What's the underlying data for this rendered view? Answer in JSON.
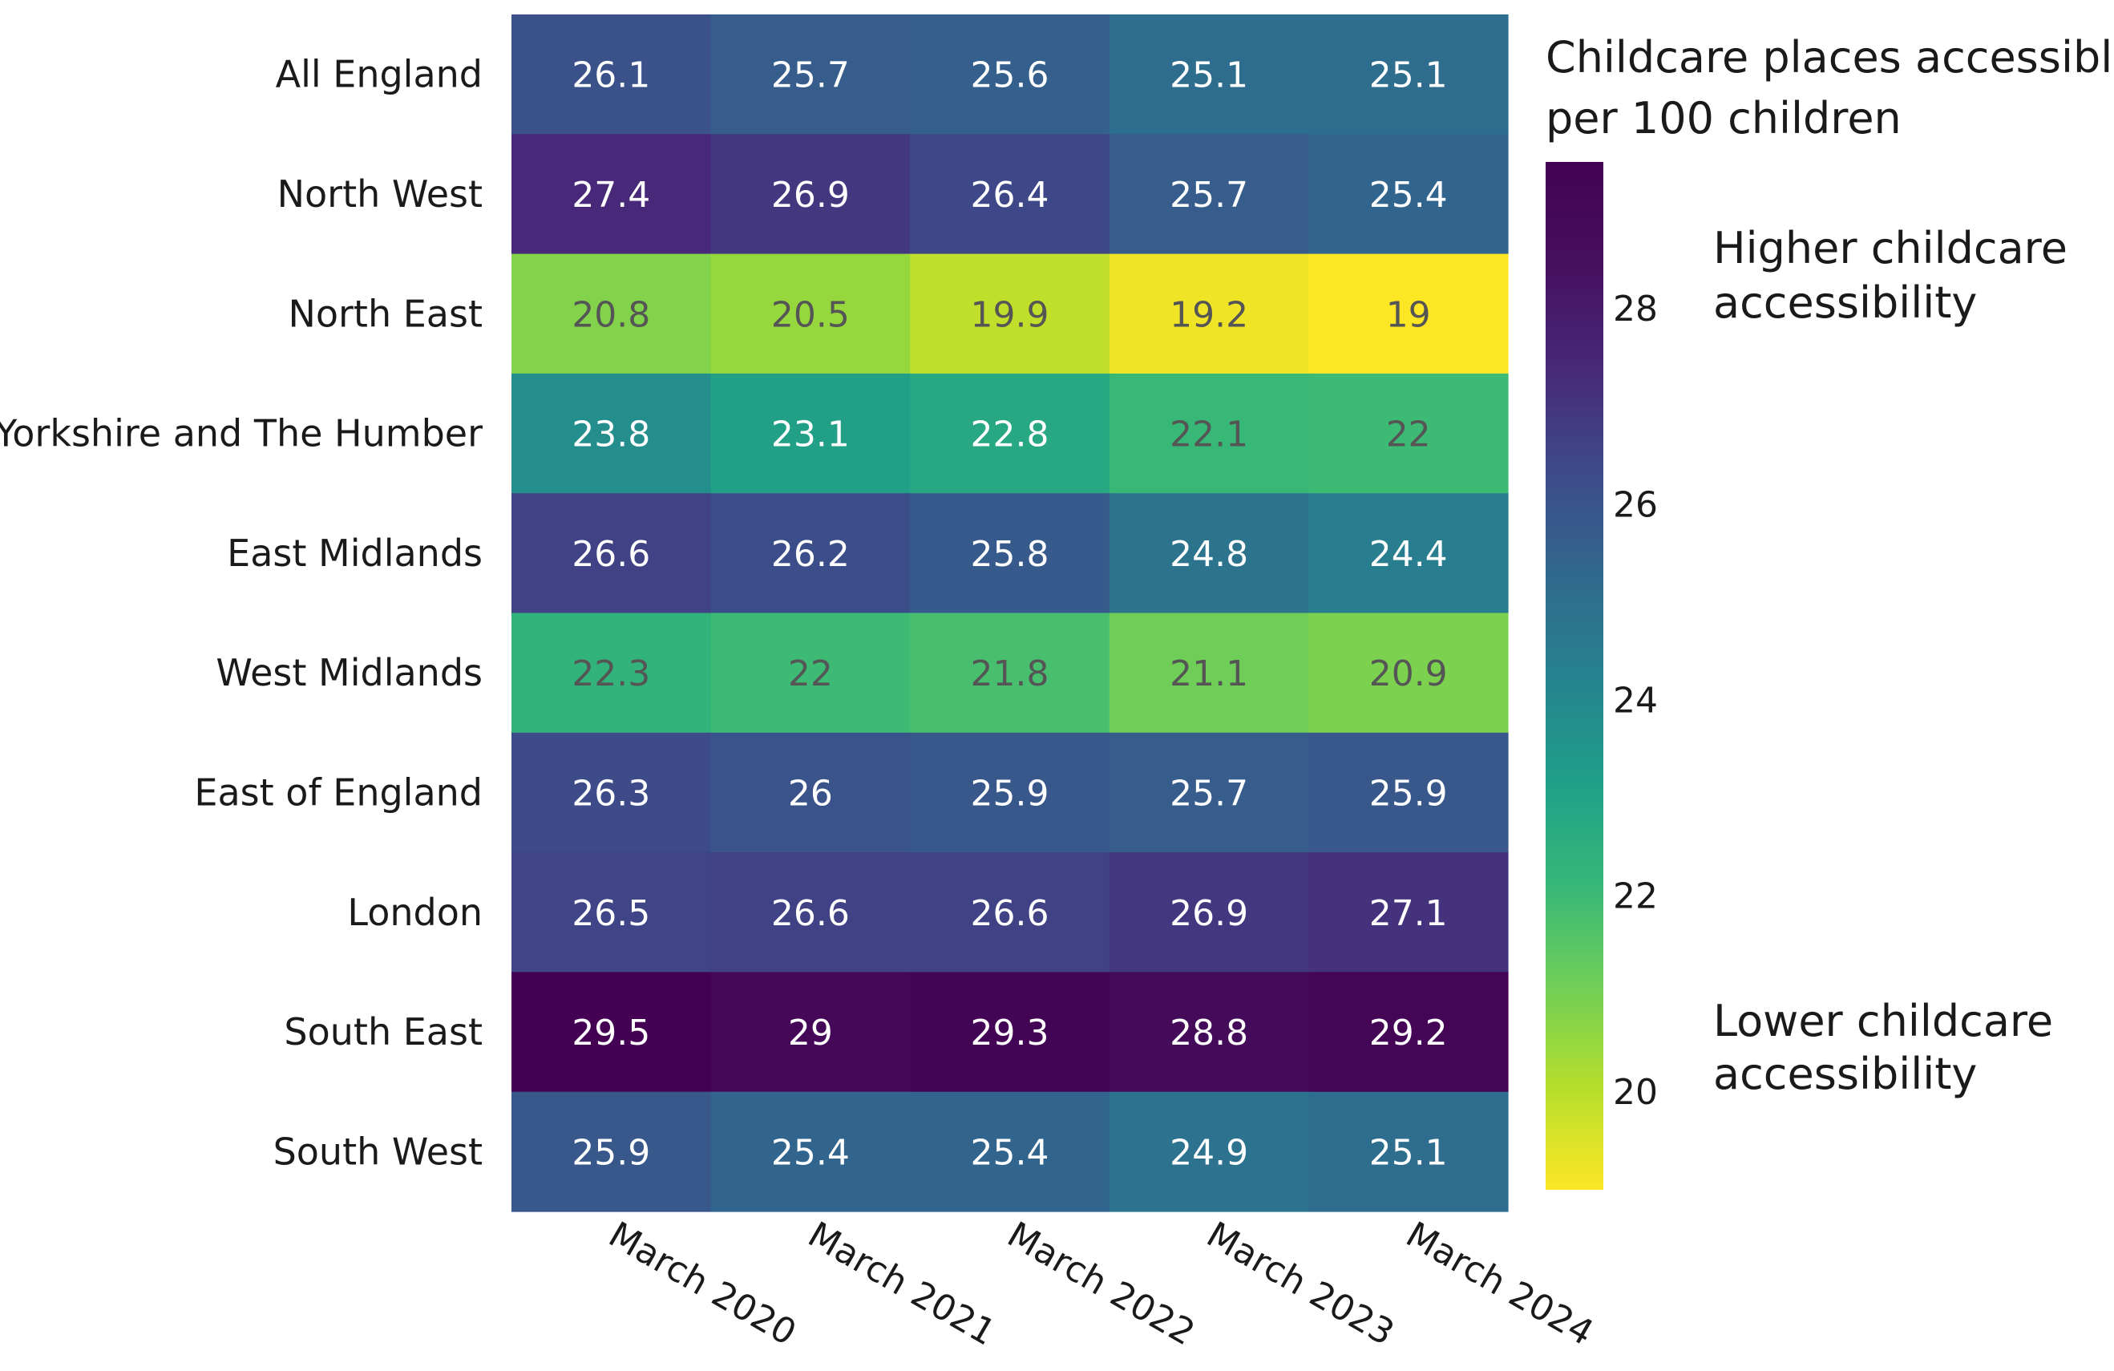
{
  "chart_data": {
    "type": "heatmap",
    "title": "",
    "rows": [
      "All England",
      "North West",
      "North East",
      "Yorkshire and The Humber",
      "East Midlands",
      "West Midlands",
      "East of England",
      "London",
      "South East",
      "South West"
    ],
    "columns": [
      "March 2020",
      "March 2021",
      "March 2022",
      "March 2023",
      "March 2024"
    ],
    "values": [
      [
        26.1,
        25.7,
        25.6,
        25.1,
        25.1
      ],
      [
        27.4,
        26.9,
        26.4,
        25.7,
        25.4
      ],
      [
        20.8,
        20.5,
        19.9,
        19.2,
        19
      ],
      [
        23.8,
        23.1,
        22.8,
        22.1,
        22
      ],
      [
        26.6,
        26.2,
        25.8,
        24.8,
        24.4
      ],
      [
        22.3,
        22,
        21.8,
        21.1,
        20.9
      ],
      [
        26.3,
        26,
        25.9,
        25.7,
        25.9
      ],
      [
        26.5,
        26.6,
        26.6,
        26.9,
        27.1
      ],
      [
        29.5,
        29,
        29.3,
        28.8,
        29.2
      ],
      [
        25.9,
        25.4,
        25.4,
        24.9,
        25.1
      ]
    ],
    "color_scale": {
      "name": "viridis (reversed)",
      "range": [
        19,
        29.5
      ],
      "ticks": [
        20,
        22,
        24,
        26,
        28
      ]
    },
    "legend": {
      "title_lines": [
        "Childcare places accessible",
        "per 100 children"
      ],
      "high_note_lines": [
        "Higher childcare",
        "accessibility"
      ],
      "low_note_lines": [
        "Lower childcare",
        "accessibility"
      ],
      "position": "right"
    }
  }
}
